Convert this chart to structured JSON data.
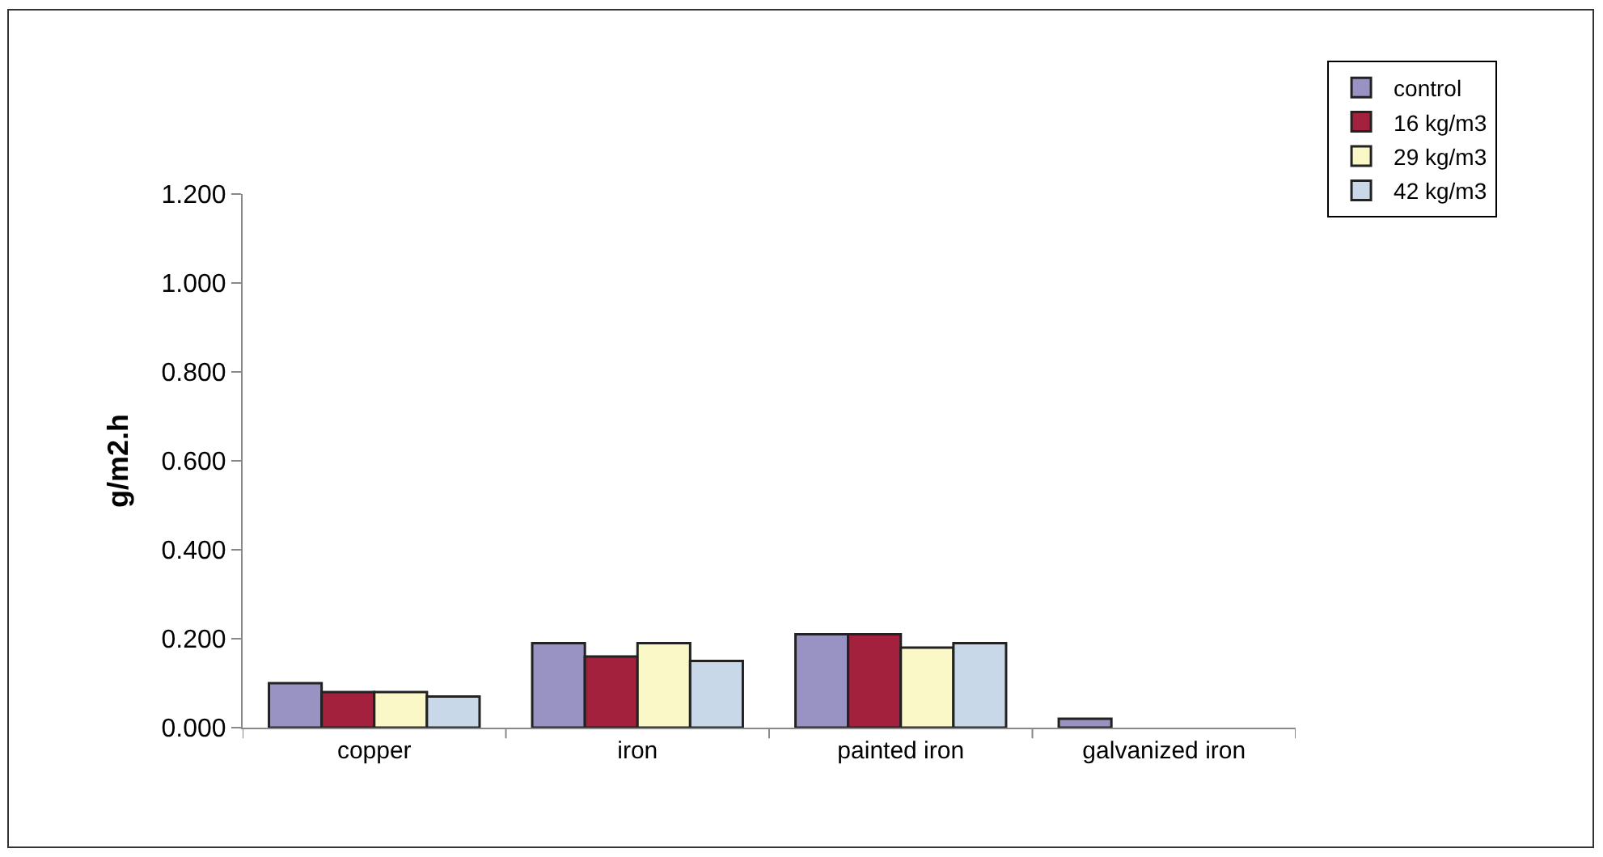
{
  "chart_data": {
    "type": "bar",
    "ylabel": "g/m2.h",
    "categories": [
      "copper",
      "iron",
      "painted iron",
      "galvanized iron"
    ],
    "series": [
      {
        "name": "control",
        "color": "#9993c3",
        "values": [
          0.1,
          0.19,
          0.21,
          0.02
        ]
      },
      {
        "name": "16 kg/m3",
        "color": "#a3213c",
        "values": [
          0.08,
          0.16,
          0.21,
          null
        ]
      },
      {
        "name": "29 kg/m3",
        "color": "#fbf8c8",
        "values": [
          0.08,
          0.19,
          0.18,
          null
        ]
      },
      {
        "name": "42 kg/m3",
        "color": "#c8d8e8",
        "values": [
          0.07,
          0.15,
          0.19,
          null
        ]
      }
    ],
    "ylim": [
      0,
      1.2
    ],
    "yticks": [
      {
        "value": 0,
        "label": "0.000"
      },
      {
        "value": 0.2,
        "label": "0.200"
      },
      {
        "value": 0.4,
        "label": "0.400"
      },
      {
        "value": 0.6,
        "label": "0.600"
      },
      {
        "value": 0.8,
        "label": "0.800"
      },
      {
        "value": 1.0,
        "label": "1.000"
      },
      {
        "value": 1.2,
        "label": "1.200"
      }
    ],
    "legend": "top right"
  }
}
